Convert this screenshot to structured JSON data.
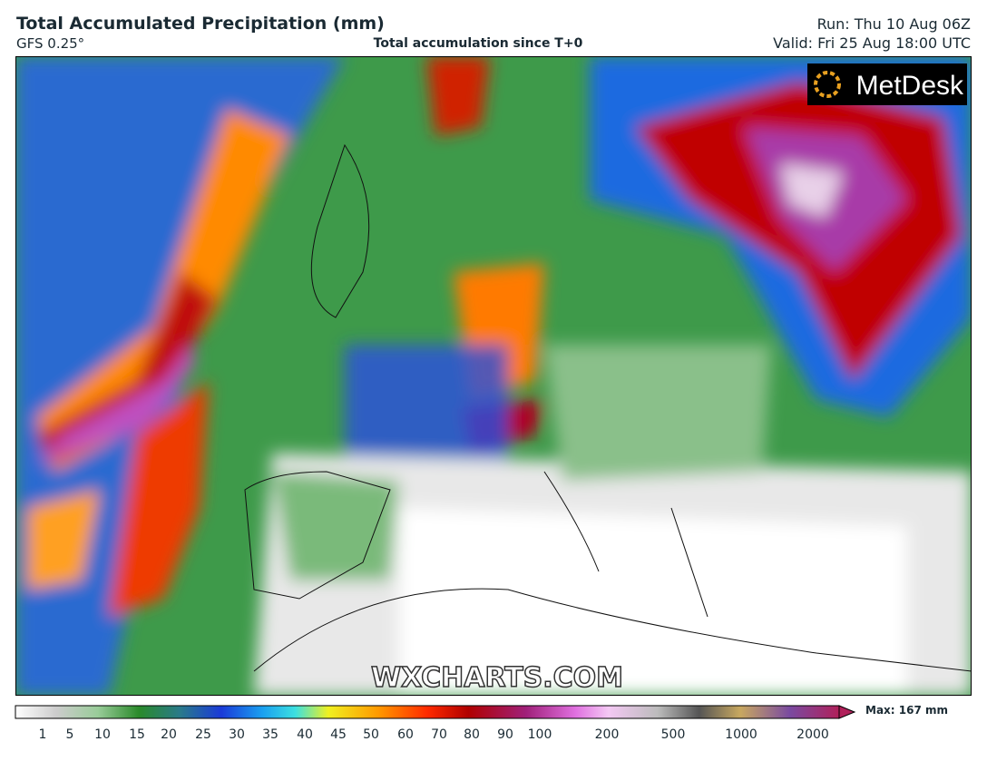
{
  "header": {
    "title": "Total Accumulated Precipitation (mm)",
    "model": "GFS 0.25°",
    "subtitle": "Total accumulation since T+0",
    "run": "Run: Thu 10 Aug 06Z",
    "valid": "Valid: Fri 25 Aug 18:00 UTC"
  },
  "logo": "MetDesk",
  "watermark": "WXCHARTS.COM",
  "legend": {
    "labels": [
      1,
      5,
      10,
      15,
      20,
      25,
      30,
      35,
      40,
      45,
      50,
      60,
      70,
      80,
      90,
      100,
      200,
      500,
      1000,
      2000
    ],
    "max": "Max: 167 mm"
  }
}
